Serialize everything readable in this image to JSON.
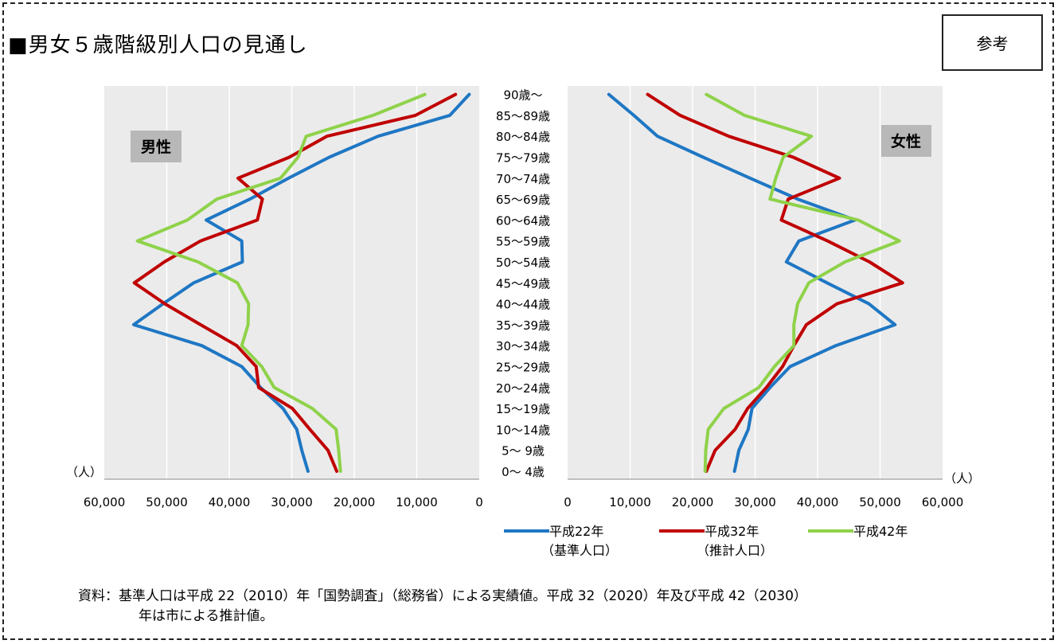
{
  "page": {
    "title": "■男女５歳階級別人口の見通し",
    "badge": "参考",
    "note_line1": "資料：基準人口は平成 22（2010）年「国勢調査」（総務省）による実績値。平成 32（2020）年及び平成 42（2030）",
    "note_line2": "年は市による推計値。"
  },
  "colors": {
    "h22": "#1f77c4",
    "h32": "#c00000",
    "h42": "#8fd24a",
    "plot_bg": "#ebebeb",
    "badge_bg": "#b8b8b8"
  },
  "chart_data": {
    "type": "line",
    "unit": "（人）",
    "age_groups": [
      "0～ 4歳",
      "5～ 9歳",
      "10～14歳",
      "15～19歳",
      "20～24歳",
      "25～29歳",
      "30～34歳",
      "35～39歳",
      "40～44歳",
      "45～49歳",
      "50～54歳",
      "55～59歳",
      "60～64歳",
      "65～69歳",
      "70～74歳",
      "75～79歳",
      "80～84歳",
      "85～89歳",
      "90歳～"
    ],
    "xlim": [
      0,
      60000
    ],
    "ticks": [
      "0",
      "10,000",
      "20,000",
      "30,000",
      "40,000",
      "50,000",
      "60,000"
    ],
    "tick_values": [
      0,
      10000,
      20000,
      30000,
      40000,
      50000,
      60000
    ],
    "legend": [
      {
        "line1": "平成22年",
        "line2": "（基準人口）"
      },
      {
        "line1": "平成32年",
        "line2": "（推計人口）"
      },
      {
        "line1": "平成42年",
        "line2": ""
      }
    ],
    "panels": [
      {
        "label": "男性",
        "series": [
          {
            "key": "h22",
            "values": [
              27400,
              28400,
              29200,
              31400,
              35000,
              38000,
              44400,
              55300,
              50600,
              45700,
              37900,
              38000,
              43700,
              36700,
              30500,
              24000,
              16200,
              4700,
              1600
            ]
          },
          {
            "key": "h32",
            "values": [
              22800,
              24200,
              27100,
              29900,
              35300,
              35700,
              38800,
              44600,
              50300,
              55200,
              50400,
              44600,
              35500,
              34700,
              38600,
              30400,
              24400,
              10200,
              3800
            ]
          },
          {
            "key": "h42",
            "values": [
              22200,
              22500,
              22900,
              26700,
              32800,
              34800,
              38000,
              37000,
              36900,
              38700,
              45000,
              54700,
              46700,
              42000,
              31800,
              29000,
              27700,
              17000,
              8700
            ]
          }
        ]
      },
      {
        "label": "女性",
        "series": [
          {
            "key": "h22",
            "values": [
              26700,
              27400,
              28900,
              29500,
              32400,
              35600,
              42900,
              52400,
              48200,
              41500,
              35000,
              37000,
              46000,
              36800,
              29200,
              21700,
              14400,
              10600,
              6600
            ]
          },
          {
            "key": "h32",
            "values": [
              22200,
              23600,
              26800,
              28800,
              31800,
              34400,
              36200,
              38200,
              43100,
              53600,
              48300,
              41600,
              34200,
              35300,
              43500,
              36100,
              25800,
              18000,
              12800
            ]
          },
          {
            "key": "h42",
            "values": [
              22000,
              22100,
              22500,
              25000,
              30600,
              33100,
              36200,
              36200,
              36800,
              38600,
              44400,
              53100,
              46500,
              32400,
              33300,
              34500,
              39000,
              28300,
              22200
            ]
          }
        ]
      }
    ]
  }
}
